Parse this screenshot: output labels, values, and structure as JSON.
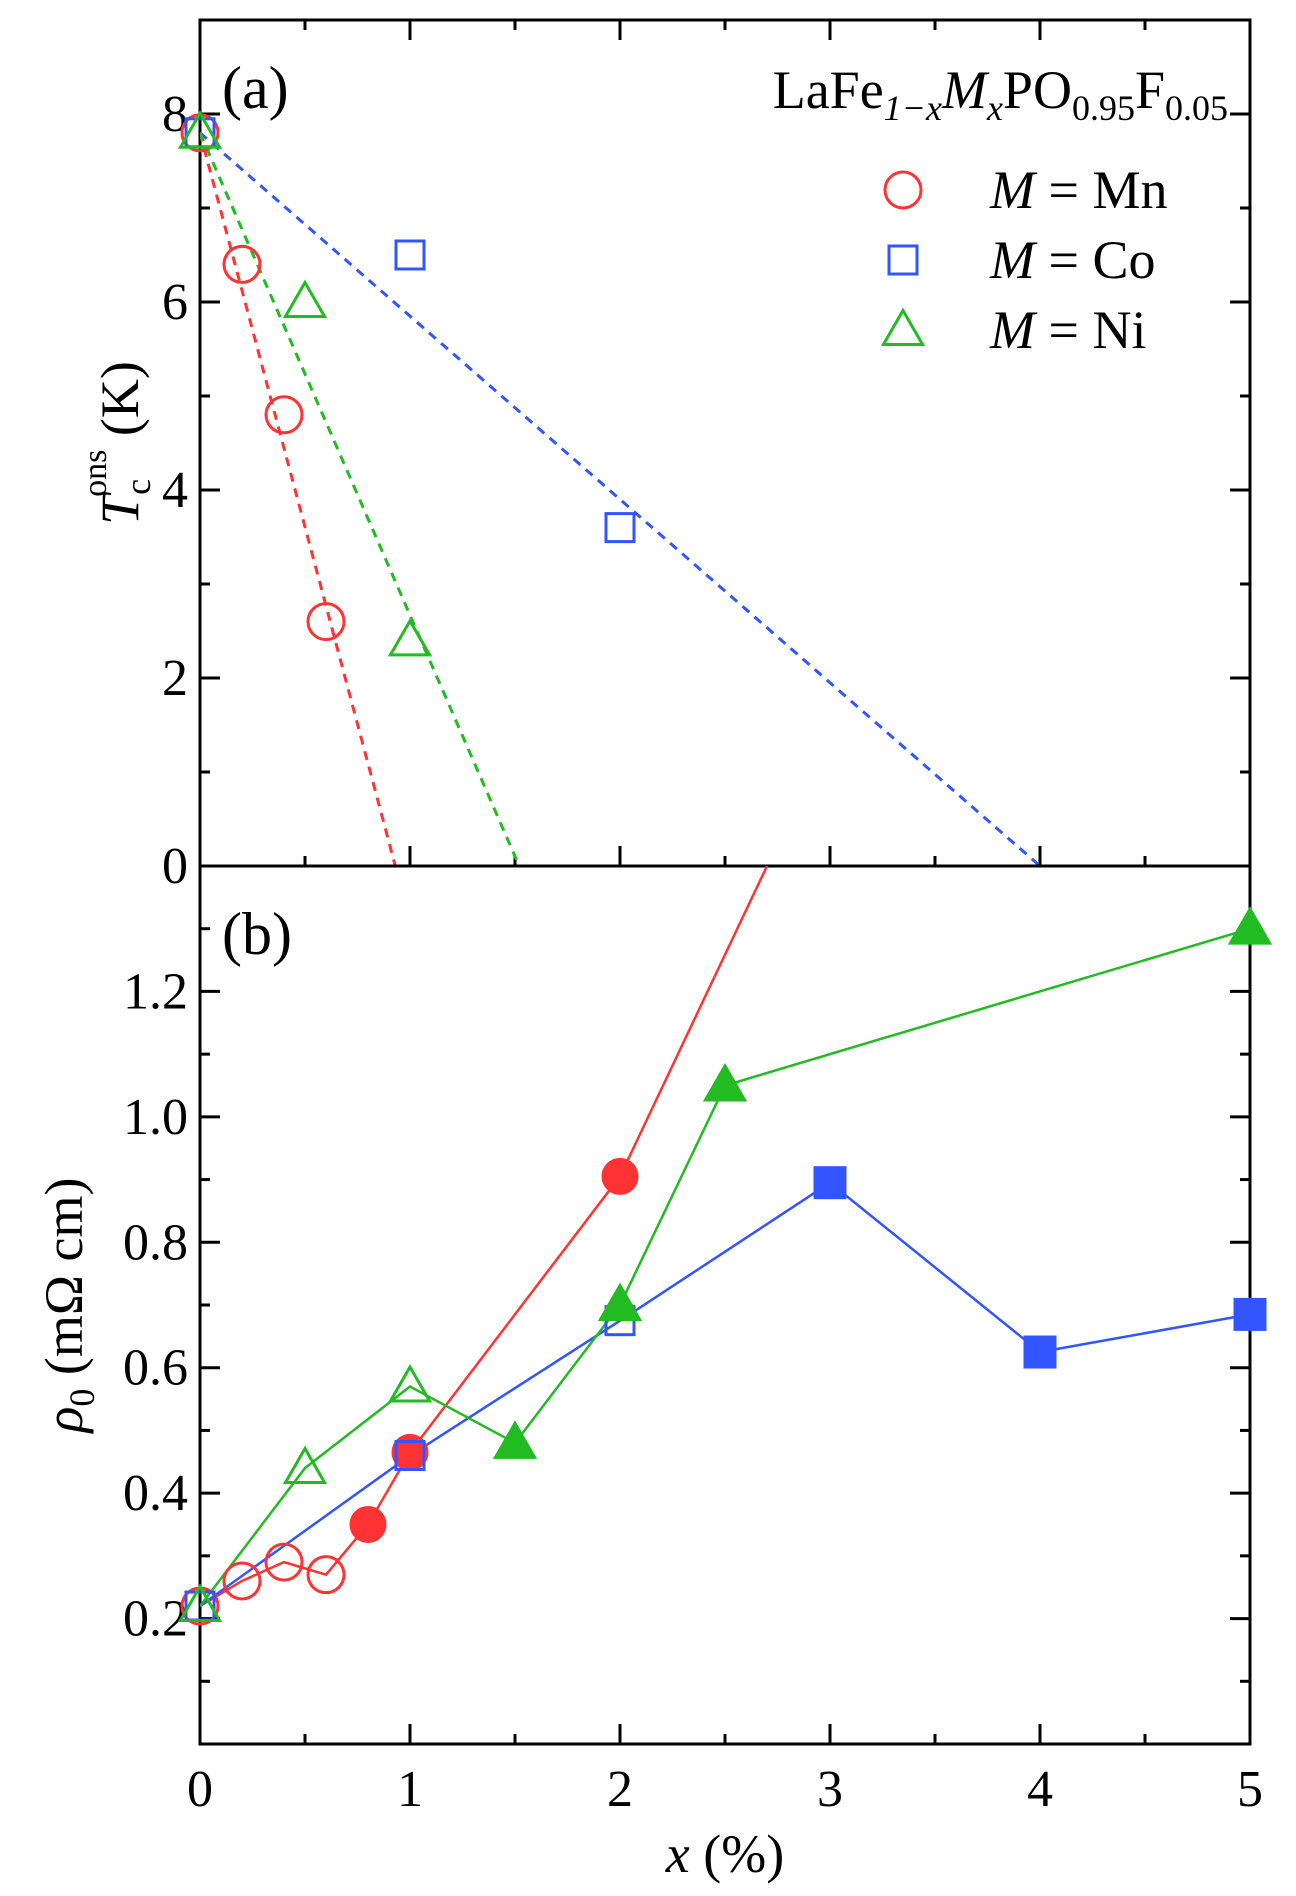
{
  "chart_data": [
    {
      "type": "scatter",
      "panel_label": "(a)",
      "title": "LaFe",
      "title_sub1": "1−x",
      "title_mid": "M",
      "title_sub2": "x",
      "title_mid2": "PO",
      "title_sub3": "0.95",
      "title_mid3": "F",
      "title_sub4": "0.05",
      "ylabel": "T",
      "ylabel_sub": "c",
      "ylabel_sup": "ons",
      "ylabel_unit": " (K)",
      "xlim": [
        0,
        5
      ],
      "ylim": [
        0,
        9
      ],
      "yticks": [
        0,
        2,
        4,
        6,
        8
      ],
      "ytick_labels": [
        "0",
        "2",
        "4",
        "6",
        "8"
      ],
      "legend_position": "top-right",
      "series": [
        {
          "name": "Mn",
          "legend_prefix": "M",
          "legend_eq": " = ",
          "legend_label": "Mn",
          "color": "#ff3333",
          "marker": "circle-open",
          "x": [
            0,
            0.2,
            0.4,
            0.6
          ],
          "y": [
            7.8,
            6.4,
            4.8,
            2.6
          ],
          "fit": {
            "x": [
              0,
              0.93
            ],
            "y": [
              7.8,
              0
            ]
          }
        },
        {
          "name": "Co",
          "legend_prefix": "M",
          "legend_eq": " = ",
          "legend_label": "Co",
          "color": "#3355ff",
          "marker": "square-open",
          "x": [
            0,
            1,
            2
          ],
          "y": [
            7.8,
            6.5,
            3.6
          ],
          "fit": {
            "x": [
              0,
              4
            ],
            "y": [
              7.8,
              0
            ]
          }
        },
        {
          "name": "Ni",
          "legend_prefix": "M",
          "legend_eq": " = ",
          "legend_label": "Ni",
          "color": "#22bb22",
          "marker": "triangle-open",
          "x": [
            0,
            0.5,
            1
          ],
          "y": [
            7.8,
            6.0,
            2.4
          ],
          "fit": {
            "x": [
              0,
              1.52
            ],
            "y": [
              7.8,
              0
            ]
          }
        }
      ]
    },
    {
      "type": "line",
      "panel_label": "(b)",
      "xlabel": "x",
      "xlabel_unit": " (%)",
      "ylabel": "ρ",
      "ylabel_sub": "0",
      "ylabel_unit": " (mΩ cm)",
      "xlim": [
        0,
        5
      ],
      "ylim": [
        0,
        1.4
      ],
      "xticks": [
        0,
        1,
        2,
        3,
        4,
        5
      ],
      "xtick_labels": [
        "0",
        "1",
        "2",
        "3",
        "4",
        "5"
      ],
      "yticks": [
        0.2,
        0.4,
        0.6,
        0.8,
        1.0,
        1.2
      ],
      "ytick_labels": [
        "0.2",
        "0.4",
        "0.6",
        "0.8",
        "1.0",
        "1.2"
      ],
      "series": [
        {
          "name": "Mn",
          "color": "#ff3333",
          "x": [
            0,
            0.2,
            0.4,
            0.6,
            0.8,
            1,
            2,
            2.7
          ],
          "y": [
            0.22,
            0.26,
            0.29,
            0.27,
            0.35,
            0.465,
            0.905,
            1.4
          ],
          "filled": [
            false,
            false,
            false,
            false,
            true,
            true,
            true,
            null
          ],
          "marker": "circle"
        },
        {
          "name": "Co",
          "color": "#3355ff",
          "x": [
            0,
            1,
            2,
            3,
            4,
            5
          ],
          "y": [
            0.22,
            0.46,
            0.675,
            0.895,
            0.625,
            0.685
          ],
          "filled": [
            false,
            false,
            false,
            true,
            true,
            true
          ],
          "marker": "square"
        },
        {
          "name": "Ni",
          "color": "#22bb22",
          "x": [
            0,
            0.5,
            1,
            1.5,
            2,
            2.5,
            5
          ],
          "y": [
            0.22,
            0.44,
            0.57,
            0.48,
            0.7,
            1.05,
            1.3
          ],
          "filled": [
            false,
            false,
            false,
            true,
            true,
            true,
            true
          ],
          "marker": "triangle"
        }
      ]
    }
  ]
}
